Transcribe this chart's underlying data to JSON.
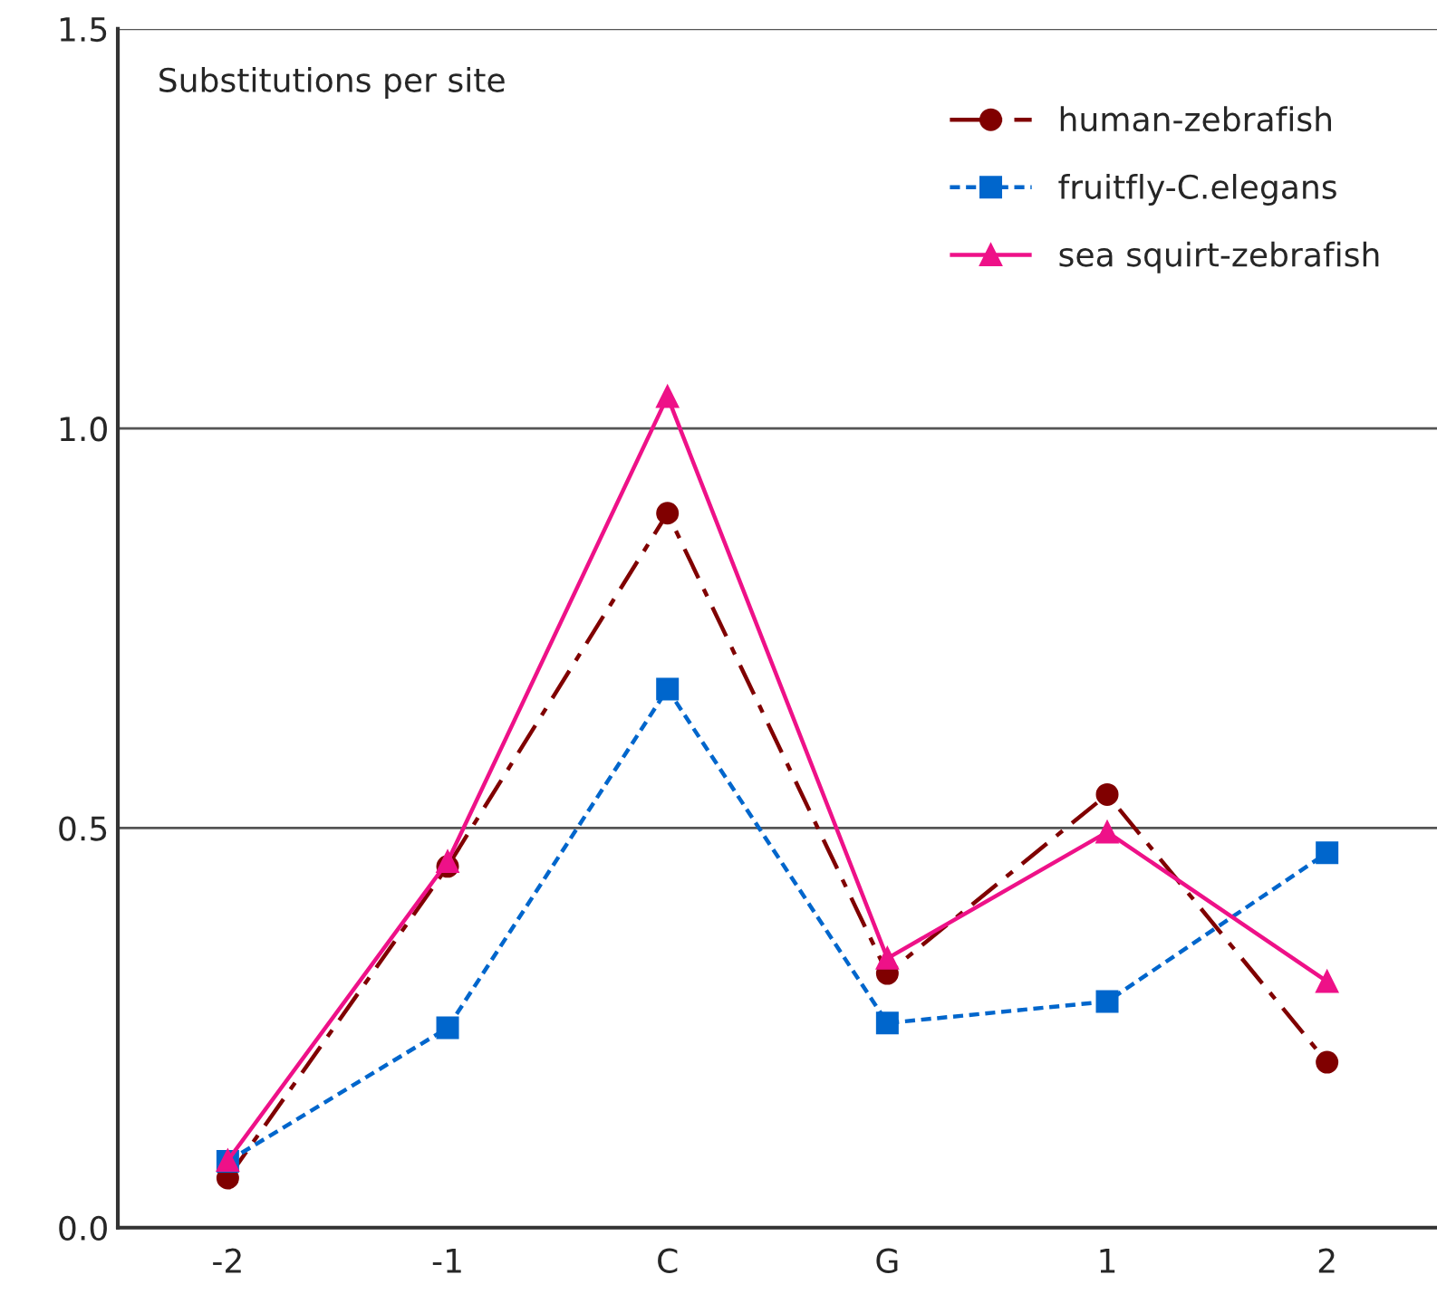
{
  "chart_data": {
    "type": "line",
    "ylabel": "Substitutions per site",
    "categories": [
      "-2",
      "-1",
      "C",
      "G",
      "1",
      "2"
    ],
    "series": [
      {
        "name": "human-zebrafish",
        "color": "#800000",
        "marker": "circle",
        "line_style": "dashed",
        "values": [
          0.062,
          0.452,
          0.894,
          0.318,
          0.542,
          0.207
        ]
      },
      {
        "name": "fruitfly-C.elegans",
        "color": "#0066cc",
        "marker": "square",
        "line_style": "dotted",
        "values": [
          0.083,
          0.25,
          0.674,
          0.256,
          0.283,
          0.469
        ]
      },
      {
        "name": "sea squirt-zebrafish",
        "color": "#ee1188",
        "marker": "triangle",
        "line_style": "solid",
        "values": [
          0.084,
          0.458,
          1.04,
          0.337,
          0.495,
          0.308
        ]
      }
    ],
    "ylim": [
      0,
      1.5
    ],
    "yticks": [
      {
        "value": 0,
        "label": "0.0"
      },
      {
        "value": 0.5,
        "label": "0.5"
      },
      {
        "value": 1.0,
        "label": "1.0"
      },
      {
        "value": 1.5,
        "label": "1.5"
      }
    ],
    "grid": "y",
    "legend": "top right"
  }
}
